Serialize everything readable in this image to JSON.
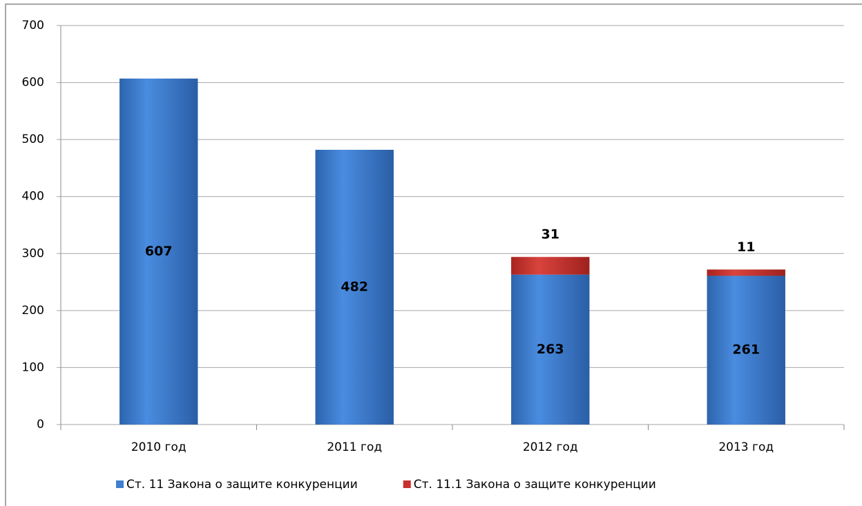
{
  "chart_data": {
    "type": "stacked_bar",
    "categories": [
      "2010 год",
      "2011 год",
      "2012 год",
      "2013 год"
    ],
    "series": [
      {
        "name": "Ст. 11 Закона о защите конкуренции",
        "color": "#3f7fd0",
        "values": [
          607,
          482,
          263,
          261
        ]
      },
      {
        "name": "Ст. 11.1 Закона о защите конкуренции",
        "color": "#c9302c",
        "values": [
          null,
          null,
          31,
          11
        ]
      }
    ],
    "ylim": [
      0,
      700
    ],
    "yticks": [
      0,
      100,
      200,
      300,
      400,
      500,
      600,
      700
    ],
    "grid": true,
    "legend": "bottom"
  }
}
